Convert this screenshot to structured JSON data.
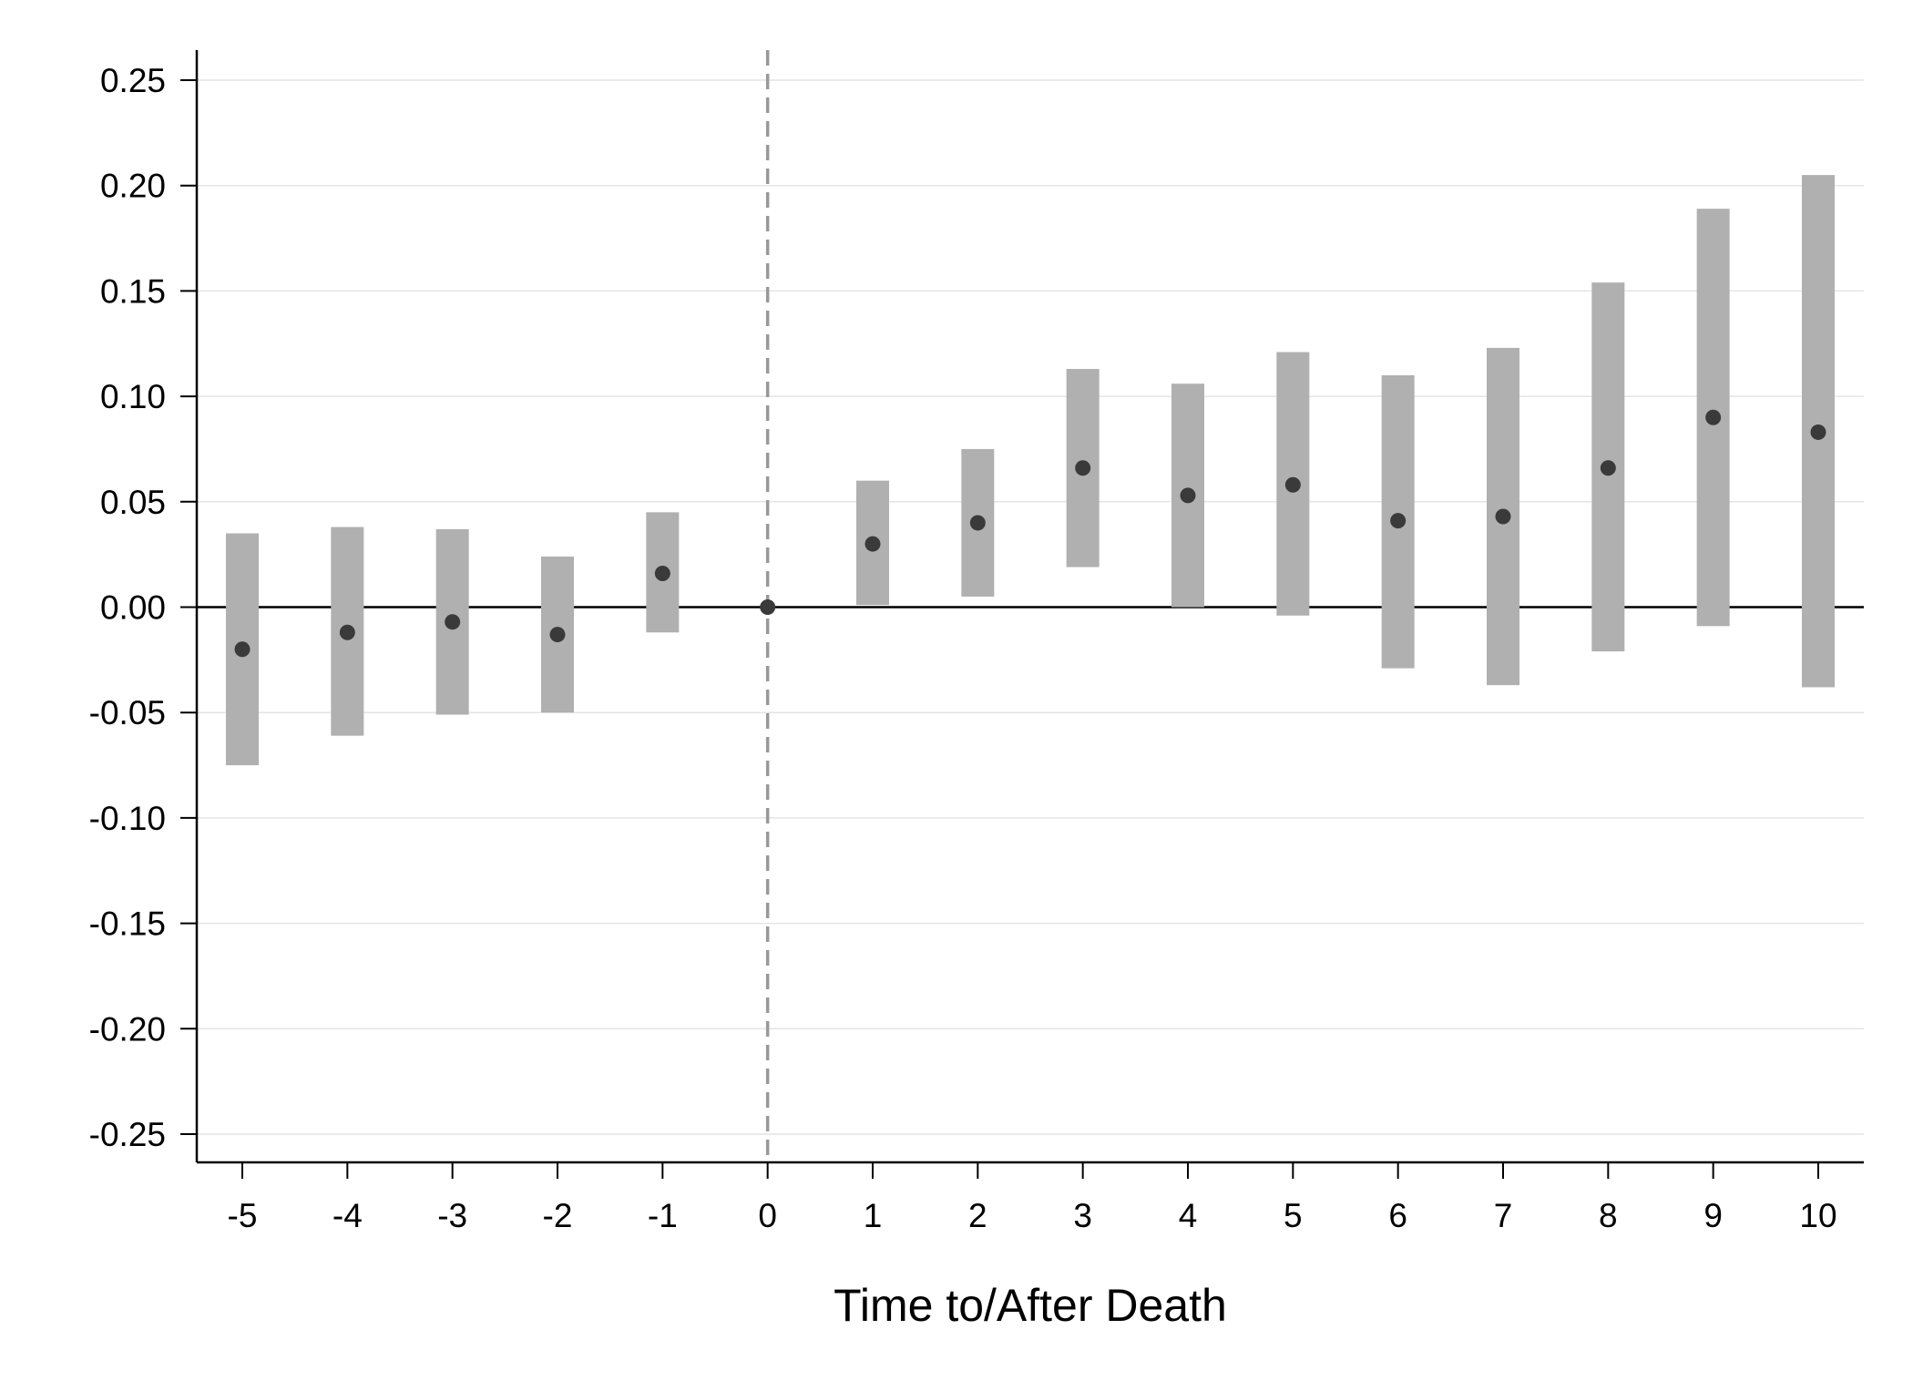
{
  "chart_data": {
    "type": "scatter",
    "subtype": "event-study coefficient plot with confidence intervals",
    "title": "",
    "xlabel": "Time to/After Death",
    "ylabel": "",
    "x": [
      -5,
      -4,
      -3,
      -2,
      -1,
      0,
      1,
      2,
      3,
      4,
      5,
      6,
      7,
      8,
      9,
      10
    ],
    "series": [
      {
        "estimate": [
          -0.02,
          -0.012,
          -0.007,
          -0.013,
          0.016,
          0.0,
          0.03,
          0.04,
          0.066,
          0.053,
          0.058,
          0.041,
          0.043,
          0.066,
          0.09,
          0.083
        ],
        "ci_low": [
          -0.075,
          -0.061,
          -0.051,
          -0.05,
          -0.012,
          0.0,
          0.001,
          0.005,
          0.019,
          0.0,
          -0.004,
          -0.029,
          -0.037,
          -0.021,
          -0.009,
          -0.038
        ],
        "ci_high": [
          0.035,
          0.038,
          0.037,
          0.024,
          0.045,
          0.0,
          0.06,
          0.075,
          0.113,
          0.106,
          0.121,
          0.11,
          0.123,
          0.154,
          0.189,
          0.205
        ]
      }
    ],
    "yticks": [
      "0.25",
      "0.20",
      "0.15",
      "0.10",
      "0.05",
      "0.00",
      "-0.05",
      "-0.10",
      "-0.15",
      "-0.20",
      "-0.25"
    ],
    "xticks": [
      "-5",
      "-4",
      "-3",
      "-2",
      "-1",
      "0",
      "1",
      "2",
      "3",
      "4",
      "5",
      "6",
      "7",
      "8",
      "9",
      "10"
    ],
    "ylim": [
      -0.25,
      0.25
    ],
    "xlim": [
      -5,
      10
    ],
    "reference_lines": {
      "horizontal_y": 0,
      "vertical_x": 0
    },
    "grid": "horizontal",
    "colors": {
      "ci_bar": "#b0b0b0",
      "point": "#3a3a3a",
      "zero_line": "#000000",
      "event_line": "#999999",
      "gridline": "#e4e4e4",
      "axis": "#000000"
    }
  }
}
